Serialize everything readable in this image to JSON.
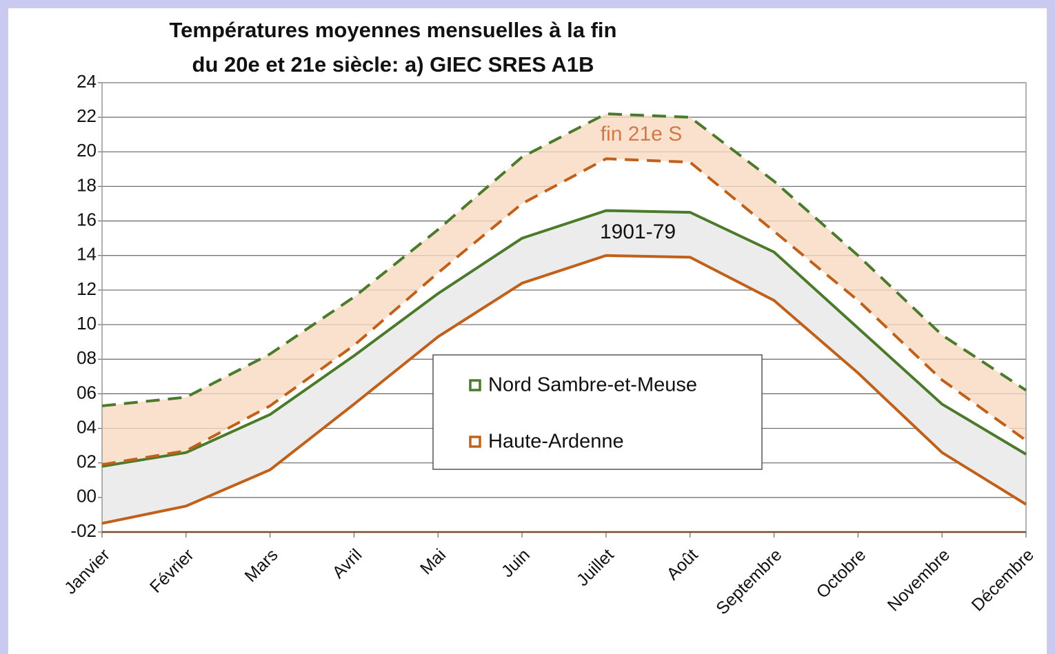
{
  "chart_data": {
    "type": "line",
    "title": [
      "Températures moyennes mensuelles à la fin",
      "du 20e et 21e siècle: a) GIEC SRES A1B"
    ],
    "categories": [
      "Janvier",
      "Février",
      "Mars",
      "Avril",
      "Mai",
      "Juin",
      "Juillet",
      "Août",
      "Septembre",
      "Octobre",
      "Novembre",
      "Décembre"
    ],
    "series": [
      {
        "name": "Nord Sambre-et-Meuse",
        "color": "#4a7a2a",
        "values": [
          1.8,
          2.6,
          4.8,
          8.2,
          11.8,
          15.0,
          16.6,
          16.5,
          14.2,
          9.8,
          5.4,
          2.5
        ],
        "values_end21": [
          5.3,
          5.8,
          8.3,
          11.6,
          15.5,
          19.7,
          22.2,
          22.0,
          18.3,
          14.0,
          9.4,
          6.2
        ]
      },
      {
        "name": "Haute-Ardenne",
        "color": "#c0601a",
        "values": [
          -1.5,
          -0.5,
          1.6,
          5.4,
          9.3,
          12.4,
          14.0,
          13.9,
          11.4,
          7.2,
          2.6,
          -0.4
        ],
        "values_end21": [
          1.9,
          2.7,
          5.3,
          8.8,
          13.0,
          17.0,
          19.6,
          19.4,
          15.4,
          11.4,
          6.8,
          3.3
        ]
      }
    ],
    "annotations": [
      "fin 21e S",
      "1901-79"
    ],
    "ylim": [
      -2,
      24
    ],
    "yticks": [
      {
        "value": -2,
        "label": "-02"
      },
      {
        "value": 0,
        "label": "00"
      },
      {
        "value": 2,
        "label": "02"
      },
      {
        "value": 4,
        "label": "04"
      },
      {
        "value": 6,
        "label": "06"
      },
      {
        "value": 8,
        "label": "08"
      },
      10,
      12,
      14,
      16,
      18,
      20,
      22,
      24
    ],
    "grid": true
  }
}
